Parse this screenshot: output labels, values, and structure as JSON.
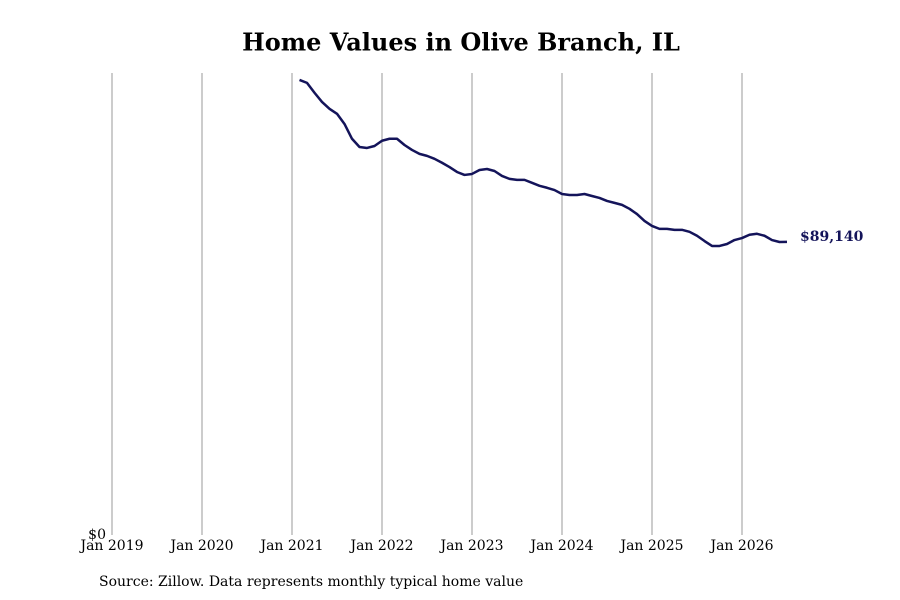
{
  "chart_data": {
    "type": "line",
    "title": "Home Values in Olive Branch, IL",
    "source": "Source: Zillow. Data represents monthly typical home value",
    "x": [
      "2021-02",
      "2021-03",
      "2021-04",
      "2021-05",
      "2021-06",
      "2021-07",
      "2021-08",
      "2021-09",
      "2021-10",
      "2021-11",
      "2021-12",
      "2022-01",
      "2022-02",
      "2022-03",
      "2022-04",
      "2022-05",
      "2022-06",
      "2022-07",
      "2022-08",
      "2022-09",
      "2022-10",
      "2022-11",
      "2022-12",
      "2023-01",
      "2023-02",
      "2023-03",
      "2023-04",
      "2023-05",
      "2023-06",
      "2023-07",
      "2023-08",
      "2023-09",
      "2023-10",
      "2023-11",
      "2023-12",
      "2024-01",
      "2024-02",
      "2024-03",
      "2024-04",
      "2024-05",
      "2024-06",
      "2024-07",
      "2024-08",
      "2024-09",
      "2024-10",
      "2024-11",
      "2024-12",
      "2025-01",
      "2025-02",
      "2025-03",
      "2025-04",
      "2025-05",
      "2025-06",
      "2025-07",
      "2025-08",
      "2025-09",
      "2025-10",
      "2025-11",
      "2025-12",
      "2026-01",
      "2026-02",
      "2026-03",
      "2026-04",
      "2026-05",
      "2026-06",
      "2026-07"
    ],
    "series": [
      {
        "color": "#14145a",
        "values": [
          138400,
          137500,
          134500,
          131700,
          129600,
          128100,
          125000,
          120500,
          118000,
          117700,
          118300,
          119900,
          120500,
          120500,
          118600,
          117100,
          115900,
          115300,
          114400,
          113200,
          111900,
          110400,
          109500,
          109800,
          111000,
          111300,
          110700,
          109200,
          108300,
          108000,
          108000,
          107100,
          106200,
          105600,
          104900,
          103700,
          103400,
          103400,
          103700,
          103100,
          102500,
          101600,
          101000,
          100400,
          99200,
          97600,
          95500,
          94000,
          93100,
          93100,
          92800,
          92800,
          92200,
          91000,
          89400,
          87900,
          87900,
          88500,
          89700,
          90300,
          91300,
          91600,
          91000,
          89700,
          89100,
          89140
        ],
        "value_labels": [
          null,
          null,
          null,
          null,
          null,
          null,
          null,
          null,
          null,
          null,
          null,
          null,
          null,
          null,
          null,
          null,
          null,
          null,
          null,
          null,
          null,
          null,
          null,
          null,
          null,
          null,
          null,
          null,
          null,
          null,
          null,
          null,
          null,
          null,
          null,
          null,
          null,
          null,
          null,
          null,
          null,
          null,
          null,
          null,
          null,
          null,
          null,
          null,
          null,
          null,
          null,
          null,
          null,
          null,
          null,
          null,
          null,
          null,
          null,
          null,
          null,
          null,
          null,
          null,
          null,
          "$89,140"
        ]
      }
    ],
    "xlim": [
      "2019-01",
      "2026-07"
    ],
    "xticks": [
      {
        "value": "2019-01",
        "label": "Jan 2019"
      },
      {
        "value": "2020-01",
        "label": "Jan 2020"
      },
      {
        "value": "2021-01",
        "label": "Jan 2021"
      },
      {
        "value": "2022-01",
        "label": "Jan 2022"
      },
      {
        "value": "2023-01",
        "label": "Jan 2023"
      },
      {
        "value": "2024-01",
        "label": "Jan 2024"
      },
      {
        "value": "2025-01",
        "label": "Jan 2025"
      },
      {
        "value": "2026-01",
        "label": "Jan 2026"
      }
    ],
    "ylim": [
      0,
      140500
    ],
    "yticks": [
      {
        "value": 0,
        "label": "$0"
      }
    ],
    "grid": true
  }
}
